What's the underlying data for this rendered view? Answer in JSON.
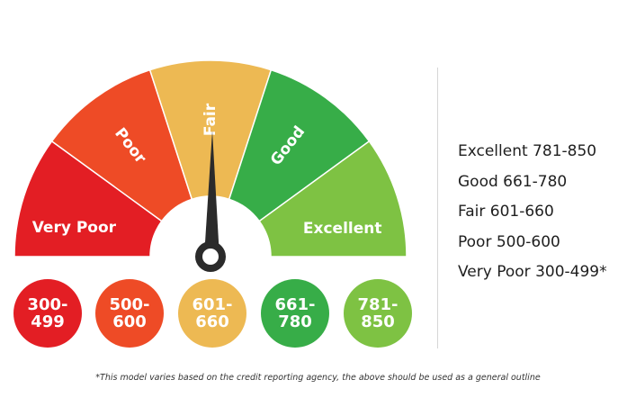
{
  "gauge": {
    "segments": [
      {
        "label": "Very Poor",
        "color": "#e31e24"
      },
      {
        "label": "Poor",
        "color": "#ee4b26"
      },
      {
        "label": "Fair",
        "color": "#edb953"
      },
      {
        "label": "Good",
        "color": "#37ad48"
      },
      {
        "label": "Excellent",
        "color": "#7ec243"
      }
    ],
    "needle_color": "#2b2b2b"
  },
  "ranges": [
    {
      "top": "300-",
      "bottom": "499",
      "color": "#e31e24"
    },
    {
      "top": "500-",
      "bottom": "600",
      "color": "#ee4b26"
    },
    {
      "top": "601-",
      "bottom": "660",
      "color": "#edb953"
    },
    {
      "top": "661-",
      "bottom": "780",
      "color": "#37ad48"
    },
    {
      "top": "781-",
      "bottom": "850",
      "color": "#7ec243"
    }
  ],
  "legend": [
    "Excellent 781-850",
    "Good 661-780",
    "Fair 601-660",
    "Poor 500-600",
    "Very Poor 300-499*"
  ],
  "footnote": "*This model varies based on the credit reporting agency, the above should be used as a general outline"
}
